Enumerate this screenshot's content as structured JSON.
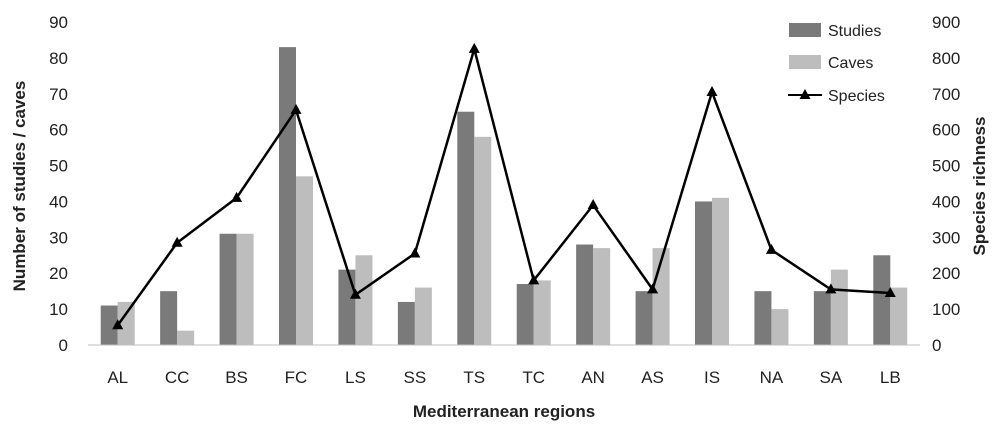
{
  "chart_data": {
    "type": "bar",
    "categories": [
      "AL",
      "CC",
      "BS",
      "FC",
      "LS",
      "SS",
      "TS",
      "TC",
      "AN",
      "AS",
      "IS",
      "NA",
      "SA",
      "LB"
    ],
    "series": [
      {
        "name": "Studies",
        "type": "bar",
        "axis": "left",
        "color": "#7a7a7a",
        "values": [
          11,
          15,
          31,
          83,
          21,
          12,
          65,
          17,
          28,
          15,
          40,
          15,
          15,
          25
        ]
      },
      {
        "name": "Caves",
        "type": "bar",
        "axis": "left",
        "color": "#bdbdbd",
        "values": [
          12,
          4,
          31,
          47,
          25,
          16,
          58,
          18,
          27,
          27,
          41,
          10,
          21,
          16
        ]
      },
      {
        "name": "Species",
        "type": "line",
        "axis": "right",
        "color": "#000000",
        "marker": "triangle",
        "values": [
          55,
          285,
          410,
          655,
          140,
          255,
          825,
          180,
          390,
          155,
          705,
          265,
          155,
          145
        ]
      }
    ],
    "xlabel": "Mediterranean regions",
    "ylabel": "Number of studies / caves",
    "y2label": "Species richness",
    "ylim": [
      0,
      90
    ],
    "y2lim": [
      0,
      900
    ],
    "yticks": [
      "0",
      "10",
      "20",
      "30",
      "40",
      "50",
      "60",
      "70",
      "80",
      "90"
    ],
    "y2ticks": [
      "0",
      "100",
      "200",
      "300",
      "400",
      "500",
      "600",
      "700",
      "800",
      "900"
    ],
    "grid": false,
    "legend_position": "top-right"
  }
}
